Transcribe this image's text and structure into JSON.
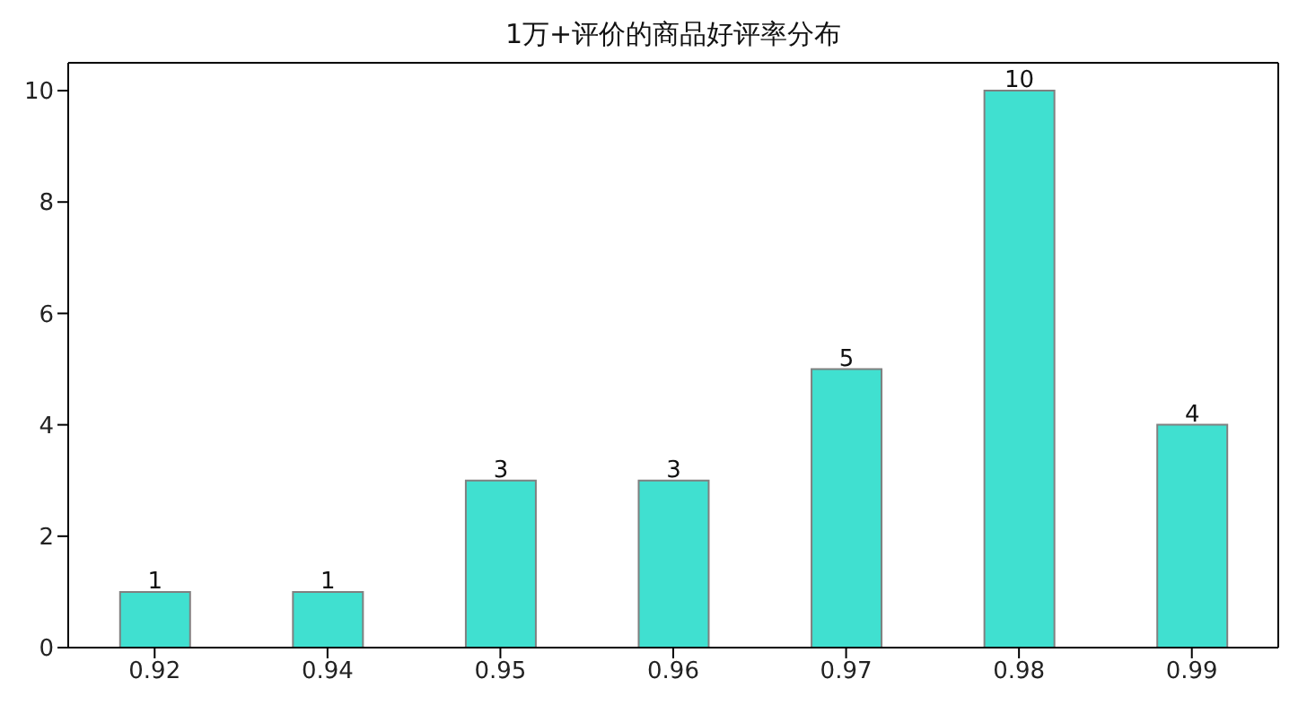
{
  "chart_data": {
    "type": "bar",
    "title": "1万+评价的商品好评率分布",
    "categories": [
      "0.92",
      "0.94",
      "0.95",
      "0.96",
      "0.97",
      "0.98",
      "0.99"
    ],
    "values": [
      1,
      1,
      3,
      3,
      5,
      10,
      4
    ],
    "color": "#40e0d0",
    "ylim": [
      0,
      10.5
    ],
    "yticks": [
      0,
      2,
      4,
      6,
      8,
      10
    ],
    "data_labels": true
  }
}
